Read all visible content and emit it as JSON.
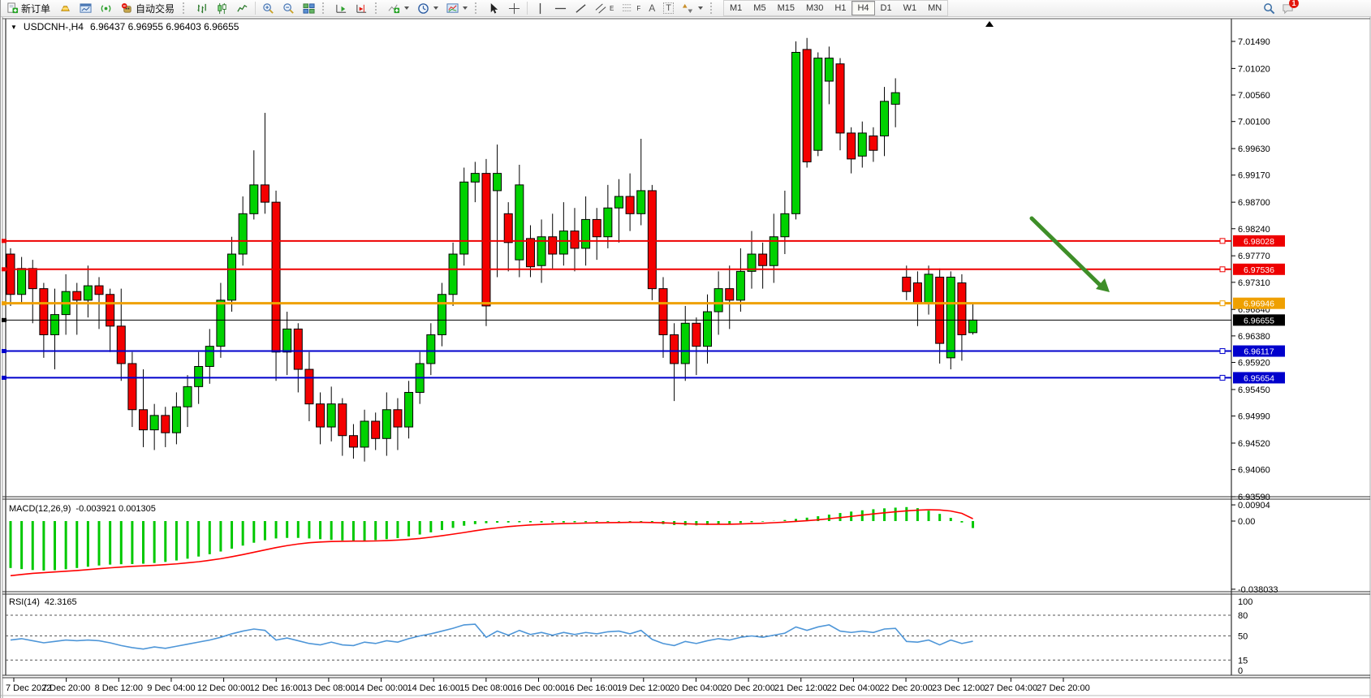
{
  "toolbar": {
    "new_order_label": "新订单",
    "autotrade_label": "自动交易",
    "timeframes": [
      "M1",
      "M5",
      "M15",
      "M30",
      "H1",
      "H4",
      "D1",
      "W1",
      "MN"
    ],
    "active_timeframe": "H4",
    "notification_count": "1",
    "glyphs": {
      "text_tool": "A",
      "label_tool": "T",
      "channel_tool": "E",
      "fibo_tool": "F"
    }
  },
  "chart": {
    "dropdown_glyph": "▼",
    "symbol_period": "USDCNH-,H4",
    "quote_line": "6.96437 6.96955 6.96403 6.96655"
  },
  "chart_data": {
    "type": "candlestick",
    "symbol": "USDCNH-",
    "period": "H4",
    "current_ohlc": {
      "open": 6.96437,
      "high": 6.96955,
      "low": 6.96403,
      "close": 6.96655
    },
    "price_axis": {
      "min": 6.9359,
      "max": 7.0149,
      "ticks": [
        "7.01490",
        "7.01020",
        "7.00560",
        "7.00100",
        "6.99630",
        "6.99170",
        "6.98700",
        "6.98240",
        "6.97770",
        "6.97310",
        "6.96840",
        "6.96380",
        "6.95920",
        "6.95450",
        "6.94990",
        "6.94520",
        "6.94060",
        "6.93590"
      ]
    },
    "hlines": [
      {
        "price": "6.98028",
        "color": "#ee0000",
        "thick": 2,
        "kind": "resistance-line"
      },
      {
        "price": "6.97536",
        "color": "#ee0000",
        "thick": 2,
        "kind": "resistance-line"
      },
      {
        "price": "6.96946",
        "color": "#efa000",
        "thick": 3,
        "kind": "pivot-line"
      },
      {
        "price": "6.96655",
        "color": "#000000",
        "thick": 1,
        "kind": "current-price-line"
      },
      {
        "price": "6.96117",
        "color": "#0000cc",
        "thick": 2,
        "kind": "support-line"
      },
      {
        "price": "6.95654",
        "color": "#0000cc",
        "thick": 2,
        "kind": "support-line"
      }
    ],
    "candles": [
      [
        6.978,
        6.979,
        6.969,
        6.971
      ],
      [
        6.971,
        6.9775,
        6.9695,
        6.9755
      ],
      [
        6.9755,
        6.977,
        6.966,
        6.972
      ],
      [
        6.972,
        6.973,
        6.96,
        6.964
      ],
      [
        6.964,
        6.972,
        6.958,
        6.9675
      ],
      [
        6.9675,
        6.9745,
        6.964,
        6.9715
      ],
      [
        6.9715,
        6.973,
        6.964,
        6.97
      ],
      [
        6.97,
        6.976,
        6.967,
        6.9725
      ],
      [
        6.9725,
        6.974,
        6.965,
        6.971
      ],
      [
        6.971,
        6.972,
        6.961,
        6.9655
      ],
      [
        6.9655,
        6.972,
        6.956,
        6.959
      ],
      [
        6.959,
        6.961,
        6.948,
        6.951
      ],
      [
        6.951,
        6.958,
        6.9445,
        6.9475
      ],
      [
        6.9475,
        6.952,
        6.944,
        6.95
      ],
      [
        6.95,
        6.9515,
        6.9445,
        6.947
      ],
      [
        6.947,
        6.954,
        6.945,
        6.9515
      ],
      [
        6.9515,
        6.957,
        6.948,
        6.955
      ],
      [
        6.955,
        6.961,
        6.952,
        6.9585
      ],
      [
        6.9585,
        6.965,
        6.9555,
        6.962
      ],
      [
        6.962,
        6.973,
        6.96,
        6.97
      ],
      [
        6.97,
        6.981,
        6.968,
        6.978
      ],
      [
        6.978,
        6.988,
        6.976,
        6.985
      ],
      [
        6.985,
        6.996,
        6.984,
        6.99
      ],
      [
        6.99,
        7.0025,
        6.985,
        6.987
      ],
      [
        6.987,
        6.989,
        6.956,
        6.961
      ],
      [
        6.961,
        6.968,
        6.957,
        6.965
      ],
      [
        6.965,
        6.966,
        6.954,
        6.958
      ],
      [
        6.958,
        6.961,
        6.949,
        6.952
      ],
      [
        6.952,
        6.954,
        6.945,
        6.948
      ],
      [
        6.948,
        6.955,
        6.9455,
        6.952
      ],
      [
        6.952,
        6.953,
        6.943,
        6.9465
      ],
      [
        6.9465,
        6.9485,
        6.9425,
        6.9445
      ],
      [
        6.9445,
        6.951,
        6.942,
        6.949
      ],
      [
        6.949,
        6.9505,
        6.944,
        6.946
      ],
      [
        6.946,
        6.954,
        6.943,
        6.951
      ],
      [
        6.951,
        6.953,
        6.944,
        6.948
      ],
      [
        6.948,
        6.956,
        6.946,
        6.954
      ],
      [
        6.954,
        6.961,
        6.952,
        6.959
      ],
      [
        6.959,
        6.966,
        6.957,
        6.964
      ],
      [
        6.964,
        6.973,
        6.962,
        6.971
      ],
      [
        6.971,
        6.98,
        6.969,
        6.978
      ],
      [
        6.978,
        6.993,
        6.976,
        6.9905
      ],
      [
        6.9905,
        6.994,
        6.987,
        6.992
      ],
      [
        6.992,
        6.9945,
        6.9655,
        6.969
      ],
      [
        6.989,
        6.997,
        6.974,
        6.992
      ],
      [
        6.985,
        6.987,
        6.975,
        6.98
      ],
      [
        6.977,
        6.9935,
        6.974,
        6.99
      ],
      [
        6.9807,
        6.983,
        6.974,
        6.9758
      ],
      [
        6.976,
        6.984,
        6.973,
        6.981
      ],
      [
        6.981,
        6.985,
        6.9755,
        6.978
      ],
      [
        6.978,
        6.987,
        6.976,
        6.982
      ],
      [
        6.982,
        6.986,
        6.975,
        6.979
      ],
      [
        6.979,
        6.988,
        6.976,
        6.984
      ],
      [
        6.984,
        6.986,
        6.977,
        6.981
      ],
      [
        6.981,
        6.99,
        6.979,
        6.986
      ],
      [
        6.986,
        6.991,
        6.98,
        6.988
      ],
      [
        6.988,
        6.992,
        6.982,
        6.985
      ],
      [
        6.985,
        6.998,
        6.983,
        6.989
      ],
      [
        6.989,
        6.99,
        6.97,
        6.972
      ],
      [
        6.972,
        6.974,
        6.96,
        6.964
      ],
      [
        6.964,
        6.966,
        6.9525,
        6.959
      ],
      [
        6.959,
        6.969,
        6.956,
        6.966
      ],
      [
        6.966,
        6.967,
        6.957,
        6.962
      ],
      [
        6.962,
        6.971,
        6.959,
        6.968
      ],
      [
        6.968,
        6.975,
        6.964,
        6.972
      ],
      [
        6.972,
        6.976,
        6.965,
        6.97
      ],
      [
        6.97,
        6.979,
        6.968,
        6.975
      ],
      [
        6.975,
        6.982,
        6.972,
        6.978
      ],
      [
        6.978,
        6.98,
        6.972,
        6.976
      ],
      [
        6.976,
        6.985,
        6.973,
        6.981
      ],
      [
        6.981,
        6.989,
        6.978,
        6.985
      ],
      [
        6.985,
        7.0149,
        6.984,
        7.013
      ],
      [
        7.0135,
        7.0155,
        6.993,
        6.994
      ],
      [
        6.996,
        7.013,
        6.995,
        7.012
      ],
      [
        7.008,
        7.014,
        7.004,
        7.012
      ],
      [
        7.011,
        7.012,
        6.996,
        6.999
      ],
      [
        6.999,
        7.0,
        6.992,
        6.9945
      ],
      [
        6.995,
        7.001,
        6.993,
        6.999
      ],
      [
        6.9985,
        7.0,
        6.994,
        6.996
      ],
      [
        6.9985,
        7.007,
        6.995,
        7.0045
      ],
      [
        7.004,
        7.0085,
        7.0,
        7.006
      ],
      [
        6.974,
        6.976,
        6.97,
        6.9715
      ],
      [
        6.973,
        6.975,
        6.9655,
        6.9695
      ],
      [
        6.9695,
        6.976,
        6.9675,
        6.9745
      ],
      [
        6.974,
        6.9755,
        6.959,
        6.9625
      ],
      [
        6.96,
        6.975,
        6.958,
        6.974
      ],
      [
        6.973,
        6.9745,
        6.9595,
        6.964
      ],
      [
        6.96437,
        6.96955,
        6.96403,
        6.96655
      ]
    ],
    "macd": {
      "label": "MACD(12,26,9)",
      "values": "-0.003921 0.001305",
      "axis": [
        "0.00904",
        "0.00",
        "-0.038033"
      ],
      "axis_values": [
        0.00904,
        0,
        -0.038033
      ],
      "hist": [
        -0.0262,
        -0.0268,
        -0.0273,
        -0.0276,
        -0.0274,
        -0.0269,
        -0.0262,
        -0.0255,
        -0.0248,
        -0.0243,
        -0.0241,
        -0.024,
        -0.0238,
        -0.0234,
        -0.0228,
        -0.022,
        -0.021,
        -0.0198,
        -0.0185,
        -0.017,
        -0.0154,
        -0.0137,
        -0.0121,
        -0.0107,
        -0.0097,
        -0.0094,
        -0.0094,
        -0.0097,
        -0.0101,
        -0.0105,
        -0.0108,
        -0.011,
        -0.0109,
        -0.0106,
        -0.0101,
        -0.0095,
        -0.0086,
        -0.0075,
        -0.0063,
        -0.005,
        -0.0038,
        -0.0026,
        -0.0017,
        -0.0012,
        -0.0009,
        -0.0008,
        -0.0007,
        -0.0007,
        -0.0008,
        -0.0008,
        -0.0008,
        -0.0007,
        -0.0006,
        -0.0005,
        -0.0004,
        -0.0003,
        -0.0004,
        -0.0006,
        -0.0011,
        -0.0017,
        -0.0022,
        -0.0024,
        -0.0024,
        -0.0022,
        -0.0019,
        -0.0015,
        -0.0011,
        -0.0007,
        -0.0003,
        0.0001,
        0.0006,
        0.0012,
        0.0019,
        0.0027,
        0.0036,
        0.0045,
        0.0053,
        0.006,
        0.0066,
        0.0071,
        0.0075,
        0.0078,
        0.0072,
        0.0058,
        0.004,
        0.0018,
        -0.0008,
        -0.0039
      ],
      "signal": [
        -0.0305,
        -0.0298,
        -0.0292,
        -0.0288,
        -0.0284,
        -0.028,
        -0.0276,
        -0.0271,
        -0.0266,
        -0.0261,
        -0.0257,
        -0.0253,
        -0.025,
        -0.0247,
        -0.0243,
        -0.0239,
        -0.0233,
        -0.0227,
        -0.0219,
        -0.021,
        -0.0199,
        -0.0187,
        -0.0174,
        -0.0161,
        -0.0148,
        -0.0137,
        -0.0128,
        -0.0121,
        -0.0117,
        -0.0114,
        -0.0113,
        -0.0112,
        -0.0112,
        -0.0111,
        -0.0109,
        -0.0106,
        -0.0102,
        -0.0097,
        -0.009,
        -0.0082,
        -0.0073,
        -0.0064,
        -0.0054,
        -0.0045,
        -0.0038,
        -0.0031,
        -0.0026,
        -0.0022,
        -0.0019,
        -0.0016,
        -0.0014,
        -0.0013,
        -0.0011,
        -0.001,
        -0.0009,
        -0.0008,
        -0.0007,
        -0.0007,
        -0.0008,
        -0.001,
        -0.0012,
        -0.0015,
        -0.0017,
        -0.0018,
        -0.0018,
        -0.0018,
        -0.0016,
        -0.0014,
        -0.0012,
        -0.0009,
        -0.0006,
        -0.0002,
        0.0002,
        0.0007,
        0.0013,
        0.0019,
        0.0026,
        0.0033,
        0.004,
        0.0046,
        0.0052,
        0.0057,
        0.0061,
        0.0063,
        0.0062,
        0.0056,
        0.0043,
        0.0013
      ]
    },
    "rsi": {
      "label": "RSI(14)",
      "value": "42.3165",
      "levels": [
        "100",
        "80",
        "50",
        "15",
        "0"
      ],
      "level_values": [
        100,
        80,
        50,
        15,
        0
      ],
      "series": [
        44,
        46,
        43,
        40,
        42,
        44,
        43,
        44,
        43,
        40,
        36,
        33,
        31,
        34,
        32,
        35,
        38,
        41,
        44,
        48,
        53,
        57,
        60,
        58,
        44,
        47,
        43,
        39,
        37,
        41,
        37,
        36,
        41,
        39,
        43,
        41,
        46,
        50,
        53,
        57,
        61,
        66,
        67,
        48,
        57,
        51,
        58,
        52,
        55,
        51,
        55,
        52,
        55,
        53,
        56,
        57,
        53,
        58,
        45,
        39,
        36,
        42,
        39,
        43,
        46,
        44,
        48,
        50,
        48,
        51,
        54,
        63,
        58,
        63,
        66,
        57,
        55,
        57,
        55,
        60,
        61,
        42,
        41,
        44,
        37,
        44,
        39,
        42.3
      ]
    },
    "time_labels": [
      "7 Dec 2022",
      "7 Dec 20:00",
      "8 Dec 12:00",
      "9 Dec 04:00",
      "12 Dec 00:00",
      "12 Dec 16:00",
      "13 Dec 08:00",
      "14 Dec 00:00",
      "14 Dec 16:00",
      "15 Dec 08:00",
      "16 Dec 00:00",
      "16 Dec 16:00",
      "19 Dec 12:00",
      "20 Dec 04:00",
      "20 Dec 20:00",
      "21 Dec 12:00",
      "22 Dec 04:00",
      "22 Dec 20:00",
      "23 Dec 12:00",
      "27 Dec 04:00",
      "27 Dec 20:00"
    ],
    "trend_arrow": {
      "color": "#3e8e28",
      "direction": "down-right",
      "from_price": 6.984,
      "to_price": 6.9705
    },
    "colors": {
      "bull": "#00d200",
      "bear": "#f40000",
      "wick": "#000000",
      "macd_hist": "#00c800",
      "macd_signal": "#ff0000",
      "rsi_line": "#4e96d8"
    }
  }
}
